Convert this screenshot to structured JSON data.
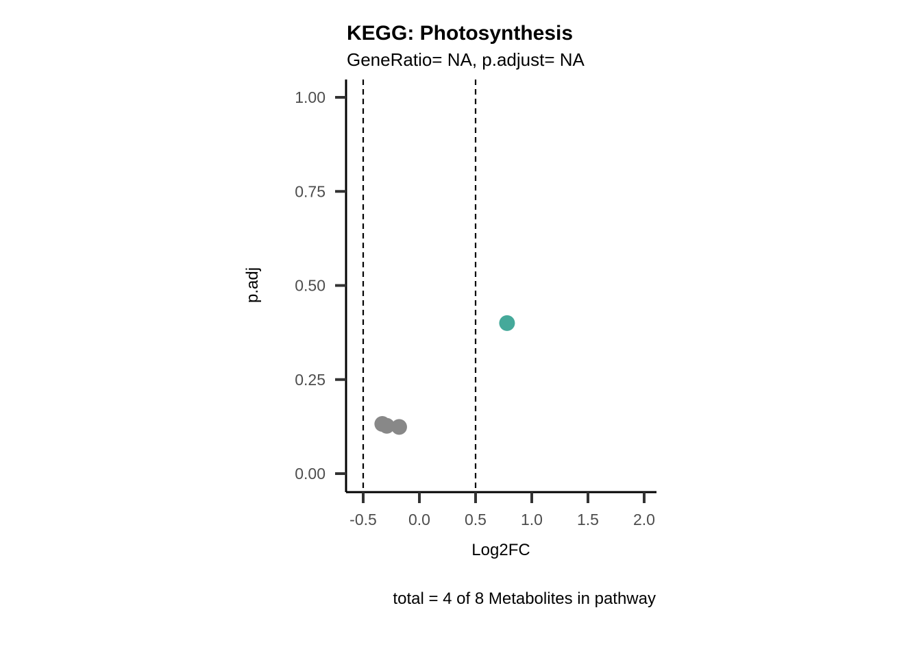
{
  "chart_data": {
    "type": "scatter",
    "title": "KEGG: Photosynthesis",
    "subtitle": "GeneRatio= NA, p.adjust= NA",
    "xlabel": "Log2FC",
    "ylabel": "p.adj",
    "caption": "total = 4 of 8 Metabolites in pathway",
    "xlim": [
      -0.65,
      2.1
    ],
    "ylim": [
      -0.05,
      1.05
    ],
    "x_ticks": [
      -0.5,
      0.0,
      0.5,
      1.0,
      1.5,
      2.0
    ],
    "x_tick_labels": [
      "-0.5",
      "0.0",
      "0.5",
      "1.0",
      "1.5",
      "2.0"
    ],
    "y_ticks": [
      0.0,
      0.25,
      0.5,
      0.75,
      1.0
    ],
    "y_tick_labels": [
      "0.00",
      "0.25",
      "0.50",
      "0.75",
      "1.00"
    ],
    "vlines": [
      -0.5,
      0.5
    ],
    "grid": false,
    "points": [
      {
        "x": -0.33,
        "y": 0.132,
        "color": "#888888"
      },
      {
        "x": -0.29,
        "y": 0.127,
        "color": "#888888"
      },
      {
        "x": -0.18,
        "y": 0.124,
        "color": "#888888"
      },
      {
        "x": 0.78,
        "y": 0.4,
        "color": "#45A99A"
      }
    ]
  }
}
